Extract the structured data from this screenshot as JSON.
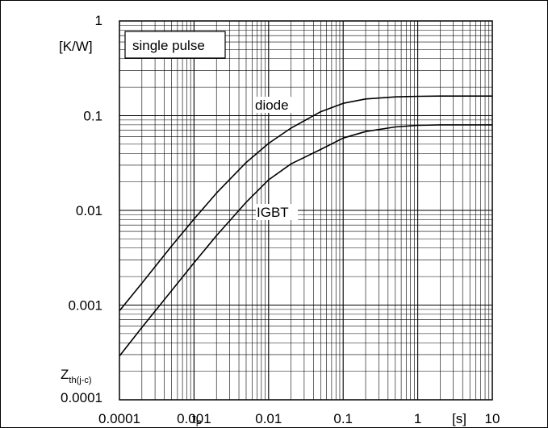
{
  "chart_data": {
    "type": "line",
    "x_scale": "log",
    "y_scale": "log",
    "xlim": [
      0.0001,
      10
    ],
    "ylim": [
      0.0001,
      1
    ],
    "grid": true,
    "x_ticks": [
      "0.0001",
      "0.001",
      "0.01",
      "0.1",
      "1",
      "10"
    ],
    "y_ticks": [
      "0.0001",
      "0.001",
      "0.01",
      "0.1",
      "1"
    ],
    "xlabel": "t",
    "xlabel_sub": "P",
    "x_unit": "[s]",
    "ylabel": "Z",
    "ylabel_sub": "th(j-c)",
    "y_unit": "[K/W]",
    "annotation": "single pulse",
    "series": [
      {
        "name": "diode",
        "x": [
          0.0001,
          0.0002,
          0.0005,
          0.001,
          0.002,
          0.005,
          0.01,
          0.02,
          0.05,
          0.1,
          0.2,
          0.5,
          1,
          2,
          5,
          10
        ],
        "values": [
          0.00087,
          0.0017,
          0.0042,
          0.0081,
          0.0152,
          0.032,
          0.051,
          0.074,
          0.11,
          0.135,
          0.15,
          0.158,
          0.16,
          0.161,
          0.161,
          0.161
        ]
      },
      {
        "name": "IGBT",
        "x": [
          0.0001,
          0.0002,
          0.0005,
          0.001,
          0.002,
          0.005,
          0.01,
          0.02,
          0.05,
          0.1,
          0.2,
          0.5,
          1,
          2,
          5,
          10
        ],
        "values": [
          0.00029,
          0.00058,
          0.00142,
          0.0028,
          0.0054,
          0.0122,
          0.021,
          0.031,
          0.044,
          0.058,
          0.068,
          0.076,
          0.079,
          0.08,
          0.08,
          0.08
        ]
      }
    ]
  }
}
